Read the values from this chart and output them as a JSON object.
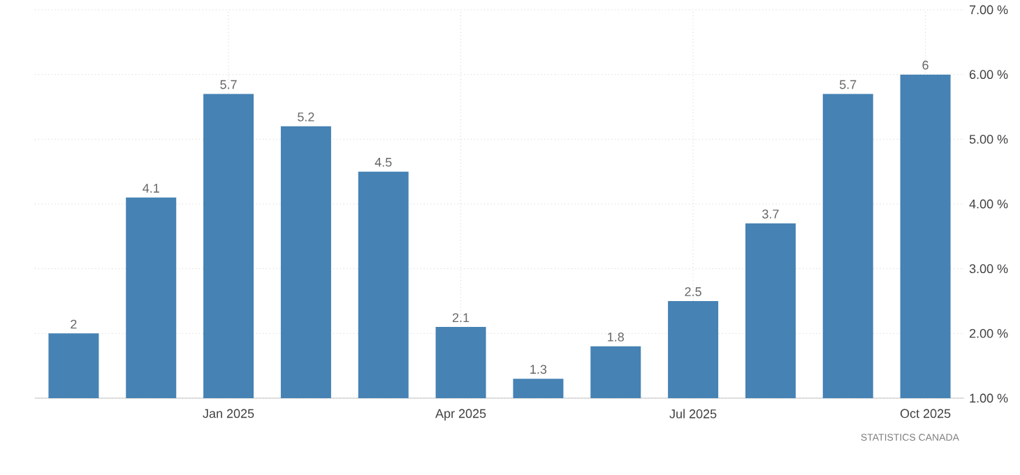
{
  "chart_data": {
    "type": "bar",
    "categories": [
      null,
      null,
      "Jan 2025",
      null,
      null,
      "Apr 2025",
      null,
      null,
      "Jul 2025",
      null,
      null,
      "Oct 2025"
    ],
    "values": [
      2,
      4.1,
      5.7,
      5.2,
      4.5,
      2.1,
      1.3,
      1.8,
      2.5,
      3.7,
      5.7,
      6
    ],
    "color": "#4682b4",
    "ylim": [
      1,
      7
    ],
    "yticks": [
      {
        "value": 1,
        "label": "1.00 %"
      },
      {
        "value": 2,
        "label": "2.00 %"
      },
      {
        "value": 3,
        "label": "3.00 %"
      },
      {
        "value": 4,
        "label": "4.00 %"
      },
      {
        "value": 5,
        "label": "5.00 %"
      },
      {
        "value": 6,
        "label": "6.00 %"
      },
      {
        "value": 7,
        "label": "7.00 %"
      }
    ],
    "grid": true,
    "data_labels": true,
    "annotations": [
      "STATISTICS CANADA"
    ]
  }
}
